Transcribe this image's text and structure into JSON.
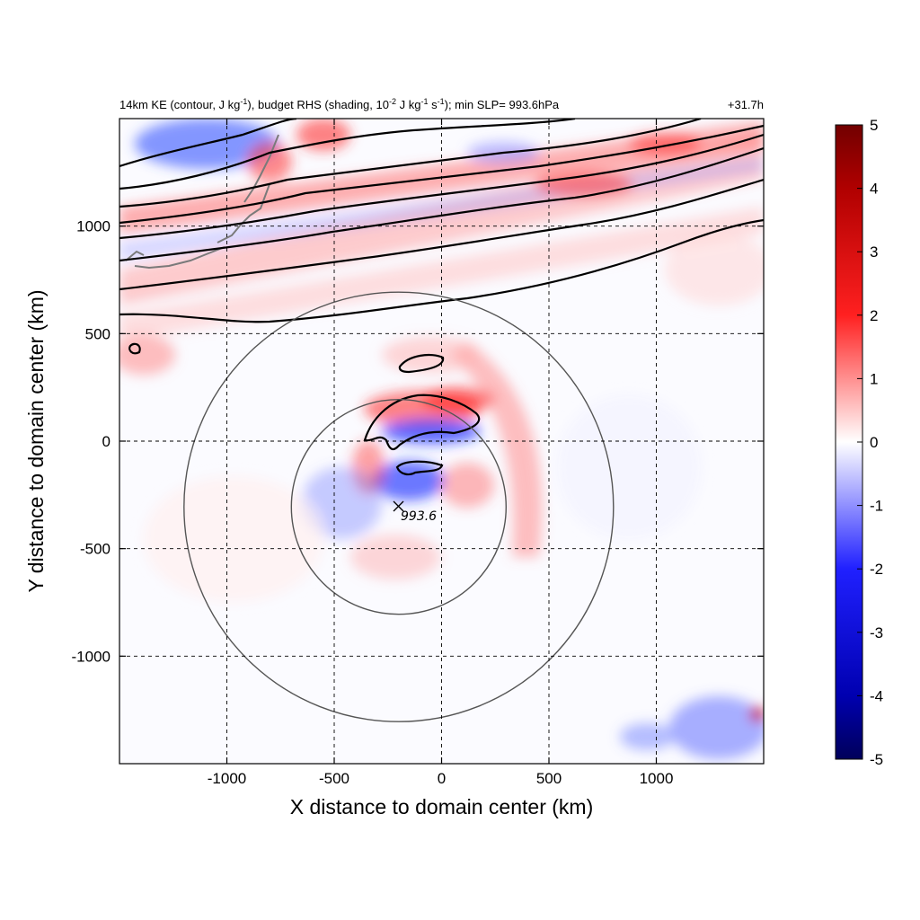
{
  "chart_data": {
    "type": "heatmap",
    "title_left_parts": {
      "p1": "14km KE (contour, J kg",
      "p1_sup": "-1",
      "p2": "), budget RHS (shading, 10",
      "p2_sup": "-2",
      "p3": " J kg",
      "p3_sup": "-1",
      "p4": " s",
      "p4_sup": "-1",
      "p5": "); min SLP= 993.6hPa"
    },
    "title_right": "+31.7h",
    "xlabel": "X distance to domain center (km)",
    "ylabel": "Y distance to domain center (km)",
    "xlim": [
      -1500,
      1500
    ],
    "ylim": [
      -1500,
      1500
    ],
    "x_ticks": [
      -1000,
      -500,
      0,
      500,
      1000
    ],
    "y_ticks": [
      -1000,
      -500,
      0,
      500,
      1000
    ],
    "x_tick_labels": [
      "-1000",
      "-500",
      "0",
      "500",
      "1000"
    ],
    "y_tick_labels": [
      "-1000",
      "-500",
      "0",
      "500",
      "1000"
    ],
    "grid": "dashed",
    "colorbar": {
      "range": [
        -5,
        5
      ],
      "ticks": [
        5,
        4,
        3,
        2,
        1,
        0,
        -1,
        -2,
        -3,
        -4,
        -5
      ],
      "tick_labels": [
        "5",
        "4",
        "3",
        "2",
        "1",
        "0",
        "-1",
        "-2",
        "-3",
        "-4",
        "-5"
      ],
      "colors": [
        "#00005a",
        "#0000ff",
        "#ffffff",
        "#ff0000",
        "#720000"
      ]
    },
    "storm_center": {
      "x": -200,
      "y": -310
    },
    "min_slp_label": "993.6",
    "range_rings_km": [
      500,
      1000
    ]
  }
}
